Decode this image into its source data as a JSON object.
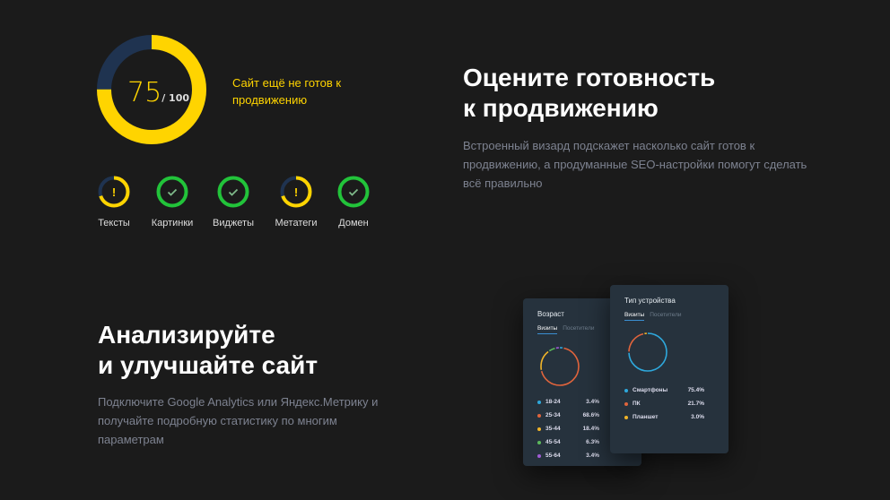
{
  "score": {
    "value": "75",
    "max": "/ 100",
    "percent": 75,
    "status": "Сайт ещё не готов к продвижению"
  },
  "checks": [
    {
      "label": "Тексты",
      "state": "warning",
      "percent": 70
    },
    {
      "label": "Картинки",
      "state": "ok"
    },
    {
      "label": "Виджеты",
      "state": "ok"
    },
    {
      "label": "Метатеги",
      "state": "warning",
      "percent": 70
    },
    {
      "label": "Домен",
      "state": "ok"
    }
  ],
  "section1": {
    "title_line1": "Оцените готовность",
    "title_line2": "к продвижению",
    "desc": "Встроенный визард подскажет насколько сайт готов к продвижению, а продуманные SEO-настройки помогут сделать всё правильно"
  },
  "section2": {
    "title_line1": "Анализируйте",
    "title_line2": "и улучшайте сайт",
    "desc": "Подключите Google Analytics или Яндекс.Метрику и получайте подробную статистику по многим параметрам"
  },
  "age_card": {
    "title": "Возраст",
    "tabs": [
      "Визиты",
      "Посетители"
    ],
    "items": [
      {
        "name": "18-24",
        "value": "3.4%",
        "color": "#2ea8dc"
      },
      {
        "name": "25-34",
        "value": "68.6%",
        "color": "#e0643c"
      },
      {
        "name": "35-44",
        "value": "18.4%",
        "color": "#f0b429"
      },
      {
        "name": "45-54",
        "value": "6.3%",
        "color": "#5cb85c"
      },
      {
        "name": "55-64",
        "value": "3.4%",
        "color": "#a05cd6"
      }
    ]
  },
  "device_card": {
    "title": "Тип устройства",
    "tabs": [
      "Визиты",
      "Посетители"
    ],
    "items": [
      {
        "name": "Смартфоны",
        "value": "75.4%",
        "color": "#2ea8dc"
      },
      {
        "name": "ПК",
        "value": "21.7%",
        "color": "#e0643c"
      },
      {
        "name": "Планшет",
        "value": "3.0%",
        "color": "#f0b429"
      }
    ]
  },
  "colors": {
    "yellow": "#ffd400",
    "navy": "#1f3350",
    "green": "#22c33a"
  }
}
